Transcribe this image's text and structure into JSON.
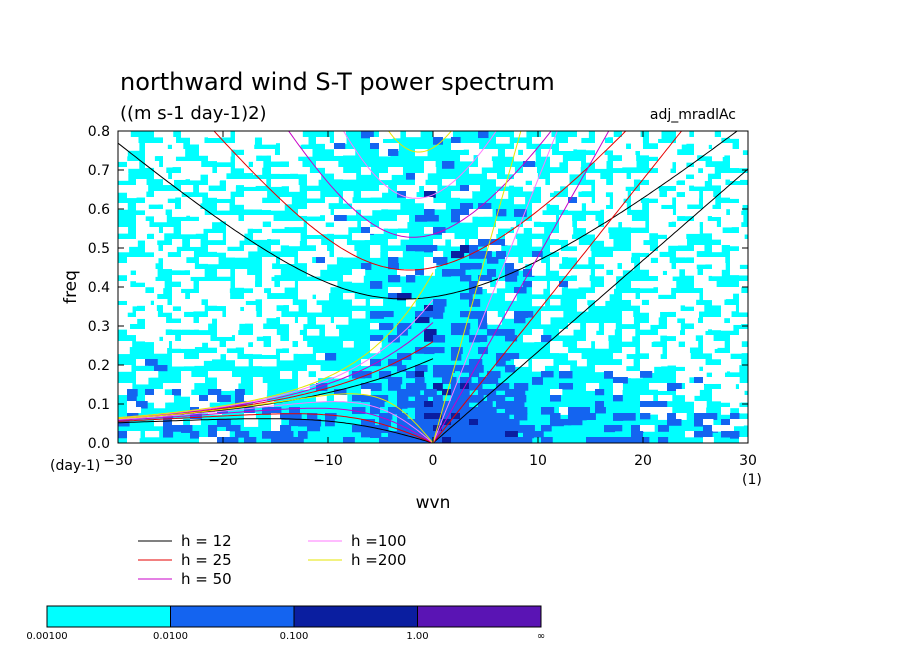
{
  "chart_data": {
    "type": "heatmap",
    "title": "northward wind S-T power spectrum",
    "subtitle": "((m s-1 day-1)2)",
    "dataset_label": "adj_mradlAc",
    "xlabel": "wvn",
    "ylabel": "freq",
    "x_unit": "(1)",
    "y_unit": "(day-1)",
    "xlim": [
      -30,
      30
    ],
    "ylim": [
      0,
      0.8
    ],
    "x_ticks": [
      -30,
      -20,
      -10,
      0,
      10,
      20,
      30
    ],
    "x_tick_labels": [
      "−30",
      "−20",
      "−10",
      "0",
      "10",
      "20",
      "30"
    ],
    "y_ticks": [
      0,
      0.1,
      0.2,
      0.3,
      0.4,
      0.5,
      0.6,
      0.7,
      0.8
    ],
    "y_tick_labels": [
      "0.0",
      "0.1",
      "0.2",
      "0.3",
      "0.4",
      "0.5",
      "0.6",
      "0.7",
      "0.8"
    ],
    "colorbar": {
      "levels": [
        "0.00100",
        "0.0100",
        "0.100",
        "1.00",
        "∞"
      ],
      "colors": [
        "#00ffff",
        "#1464f0",
        "#0a1ea0",
        "#5a14b4"
      ]
    },
    "series": [
      {
        "name": "h = 12",
        "color": "#000000",
        "h": 12
      },
      {
        "name": "h = 25",
        "color": "#e60000",
        "h": 25
      },
      {
        "name": "h = 50",
        "color": "#c800c8",
        "h": 50
      },
      {
        "name": "h =100",
        "color": "#ff78ff",
        "h": 100
      },
      {
        "name": "h =200",
        "color": "#e6e600",
        "h": 200
      }
    ]
  }
}
